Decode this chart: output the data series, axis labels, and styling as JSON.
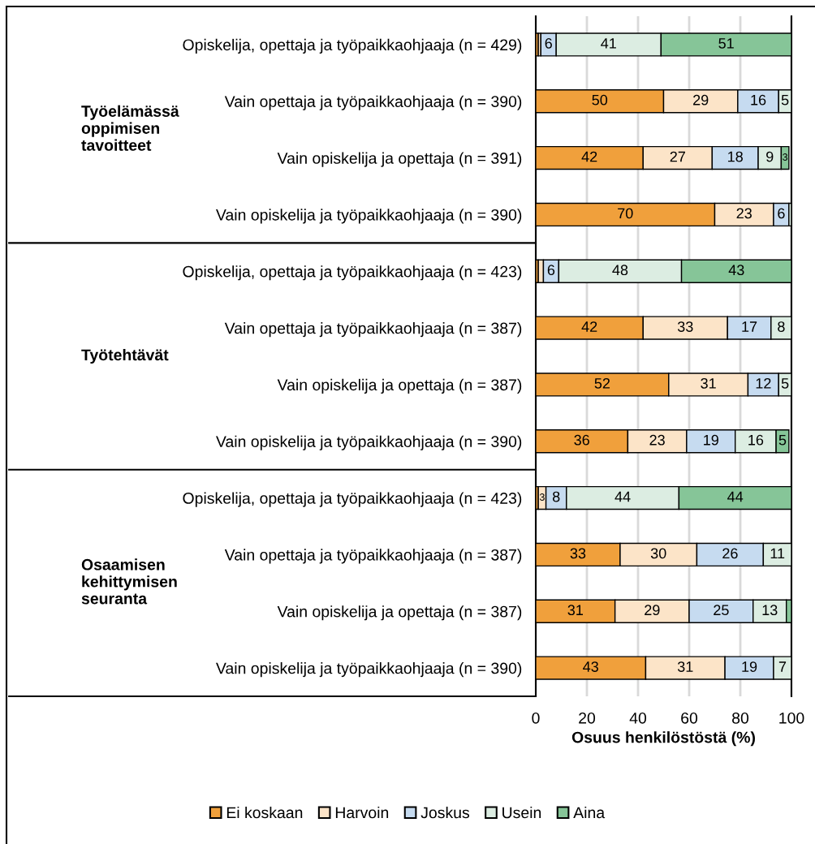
{
  "chart_data": {
    "type": "bar",
    "orientation": "horizontal",
    "stacked": true,
    "categories": [
      "Opiskelija, opettaja ja työpaikkaohjaaja (n = 429)",
      "Vain opettaja ja työpaikkaohjaaja (n = 390)",
      "Vain opiskelija ja opettaja (n = 391)",
      "Vain opiskelija ja työpaikkaohjaaja (n = 390)",
      "Opiskelija, opettaja ja työpaikkaohjaaja (n = 423)",
      "Vain opettaja ja työpaikkaohjaaja (n = 387)",
      "Vain opiskelija ja opettaja (n = 387)",
      "Vain opiskelija ja työpaikkaohjaaja (n = 390)",
      "Opiskelija, opettaja ja työpaikkaohjaaja (n = 423)",
      "Vain opettaja ja työpaikkaohjaaja (n = 387)",
      "Vain opiskelija ja opettaja (n = 387)",
      "Vain opiskelija ja työpaikkaohjaaja (n = 390)"
    ],
    "series": [
      {
        "name": "Ei koskaan",
        "color": "#f0a03c",
        "values": [
          1,
          50,
          42,
          70,
          1,
          42,
          52,
          36,
          1,
          33,
          31,
          43
        ],
        "value_labels": [
          null,
          "50",
          "42",
          "70",
          null,
          "42",
          "52",
          "36",
          null,
          "33",
          "31",
          "43"
        ]
      },
      {
        "name": "Harvoin",
        "color": "#fce4c8",
        "values": [
          1,
          29,
          27,
          23,
          2,
          33,
          31,
          23,
          3,
          30,
          29,
          31
        ],
        "value_labels": [
          null,
          "29",
          "27",
          "23",
          null,
          "33",
          "31",
          "23",
          "3",
          "30",
          "29",
          "31"
        ]
      },
      {
        "name": "Joskus",
        "color": "#c6dbf0",
        "values": [
          6,
          16,
          18,
          6,
          6,
          17,
          12,
          19,
          8,
          26,
          25,
          19
        ],
        "value_labels": [
          "6",
          "16",
          "18",
          "6",
          "6",
          "17",
          "12",
          "19",
          "8",
          "26",
          "25",
          "19"
        ]
      },
      {
        "name": "Usein",
        "color": "#dcede2",
        "values": [
          41,
          5,
          9,
          1,
          48,
          8,
          5,
          16,
          44,
          11,
          13,
          7
        ],
        "value_labels": [
          "41",
          "5",
          "9",
          null,
          "48",
          "8",
          "5",
          "16",
          "44",
          "11",
          "13",
          "7"
        ]
      },
      {
        "name": "Aina",
        "color": "#86c598",
        "values": [
          51,
          null,
          3,
          null,
          43,
          null,
          null,
          5,
          44,
          null,
          2,
          null
        ],
        "value_labels": [
          "51",
          null,
          "3",
          null,
          "43",
          null,
          null,
          "5",
          "44",
          null,
          null,
          null
        ]
      }
    ],
    "xlim": [
      0,
      100
    ],
    "xticks": [
      0,
      20,
      40,
      60,
      80,
      100
    ],
    "xlabel": "Osuus henkilöstöstä (%)",
    "annotations": [
      "Työelämässä\noppimisen\ntavoitteet",
      "Työtehtävät",
      "Osaamisen\nkehittymisen\nseuranta"
    ],
    "grid": "x",
    "legend": "bottom"
  }
}
